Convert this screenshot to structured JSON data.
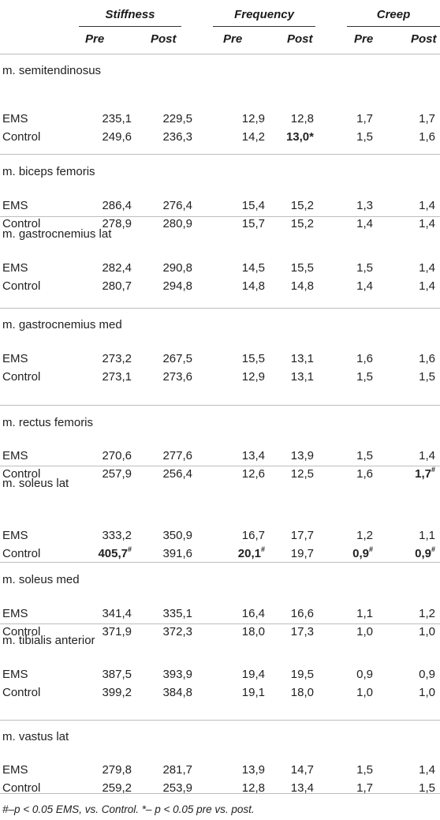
{
  "header": {
    "groups": [
      {
        "label": "Stiffness"
      },
      {
        "label": "Frequency"
      },
      {
        "label": "Creep"
      }
    ],
    "sub": {
      "pre": "Pre",
      "post": "Post"
    }
  },
  "sections": [
    {
      "muscle": "m. semitendinosus",
      "rows": [
        {
          "label": "EMS",
          "values": [
            "235,1",
            "229,5",
            "12,9",
            "12,8",
            "1,7",
            "1,7"
          ],
          "marks": [
            "",
            "",
            "",
            "",
            "",
            ""
          ]
        },
        {
          "label": "Control",
          "values": [
            "249,6",
            "236,3",
            "14,2",
            "13,0",
            "1,5",
            "1,6"
          ],
          "marks": [
            "",
            "",
            "",
            "*",
            "",
            ""
          ]
        }
      ]
    },
    {
      "muscle": "m. biceps femoris",
      "rows": [
        {
          "label": "EMS",
          "values": [
            "286,4",
            "276,4",
            "15,4",
            "15,2",
            "1,3",
            "1,4"
          ],
          "marks": [
            "",
            "",
            "",
            "",
            "",
            ""
          ]
        },
        {
          "label": "Control",
          "values": [
            "278,9",
            "280,9",
            "15,7",
            "15,2",
            "1,4",
            "1,4"
          ],
          "marks": [
            "",
            "",
            "",
            "",
            "",
            ""
          ]
        }
      ]
    },
    {
      "muscle": "m. gastrocnemius lat",
      "rows": [
        {
          "label": "EMS",
          "values": [
            "282,4",
            "290,8",
            "14,5",
            "15,5",
            "1,5",
            "1,4"
          ],
          "marks": [
            "",
            "",
            "",
            "",
            "",
            ""
          ]
        },
        {
          "label": "Control",
          "values": [
            "280,7",
            "294,8",
            "14,8",
            "14,8",
            "1,4",
            "1,4"
          ],
          "marks": [
            "",
            "",
            "",
            "",
            "",
            ""
          ]
        }
      ]
    },
    {
      "muscle": "m. gastrocnemius med",
      "rows": [
        {
          "label": "EMS",
          "values": [
            "273,2",
            "267,5",
            "15,5",
            "13,1",
            "1,6",
            "1,6"
          ],
          "marks": [
            "",
            "",
            "",
            "",
            "",
            ""
          ]
        },
        {
          "label": "Control",
          "values": [
            "273,1",
            "273,6",
            "12,9",
            "13,1",
            "1,5",
            "1,5"
          ],
          "marks": [
            "",
            "",
            "",
            "",
            "",
            ""
          ]
        }
      ]
    },
    {
      "muscle": "m. rectus femoris",
      "rows": [
        {
          "label": "EMS",
          "values": [
            "270,6",
            "277,6",
            "13,4",
            "13,9",
            "1,5",
            "1,4"
          ],
          "marks": [
            "",
            "",
            "",
            "",
            "",
            ""
          ]
        },
        {
          "label": "Control",
          "values": [
            "257,9",
            "256,4",
            "12,6",
            "12,5",
            "1,6",
            "1,7"
          ],
          "marks": [
            "",
            "",
            "",
            "",
            "",
            "#"
          ]
        }
      ]
    },
    {
      "muscle": "m. soleus lat",
      "rows": [
        {
          "label": "EMS",
          "values": [
            "333,2",
            "350,9",
            "16,7",
            "17,7",
            "1,2",
            "1,1"
          ],
          "marks": [
            "",
            "",
            "",
            "",
            "",
            ""
          ]
        },
        {
          "label": "Control",
          "values": [
            "405,7",
            "391,6",
            "20,1",
            "19,7",
            "0,9",
            "0,9"
          ],
          "marks": [
            "#",
            "",
            "#",
            "",
            "#",
            "#"
          ]
        }
      ]
    },
    {
      "muscle": "m. soleus med",
      "rows": [
        {
          "label": "EMS",
          "values": [
            "341,4",
            "335,1",
            "16,4",
            "16,6",
            "1,1",
            "1,2"
          ],
          "marks": [
            "",
            "",
            "",
            "",
            "",
            ""
          ]
        },
        {
          "label": "Control",
          "values": [
            "371,9",
            "372,3",
            "18,0",
            "17,3",
            "1,0",
            "1,0"
          ],
          "marks": [
            "",
            "",
            "",
            "",
            "",
            ""
          ]
        }
      ]
    },
    {
      "muscle": "m. tibialis anterior",
      "rows": [
        {
          "label": "EMS",
          "values": [
            "387,5",
            "393,9",
            "19,4",
            "19,5",
            "0,9",
            "0,9"
          ],
          "marks": [
            "",
            "",
            "",
            "",
            "",
            ""
          ]
        },
        {
          "label": "Control",
          "values": [
            "399,2",
            "384,8",
            "19,1",
            "18,0",
            "1,0",
            "1,0"
          ],
          "marks": [
            "",
            "",
            "",
            "",
            "",
            ""
          ]
        }
      ]
    },
    {
      "muscle": "m. vastus lat",
      "rows": [
        {
          "label": "EMS",
          "values": [
            "279,8",
            "281,7",
            "13,9",
            "14,7",
            "1,5",
            "1,4"
          ],
          "marks": [
            "",
            "",
            "",
            "",
            "",
            ""
          ]
        },
        {
          "label": "Control",
          "values": [
            "259,2",
            "253,9",
            "12,8",
            "13,4",
            "1,7",
            "1,5"
          ],
          "marks": [
            "",
            "",
            "",
            "",
            "",
            ""
          ]
        }
      ]
    }
  ],
  "footnote": "#–p < 0.05 EMS, vs. Control. *– p < 0.05 pre vs. post."
}
